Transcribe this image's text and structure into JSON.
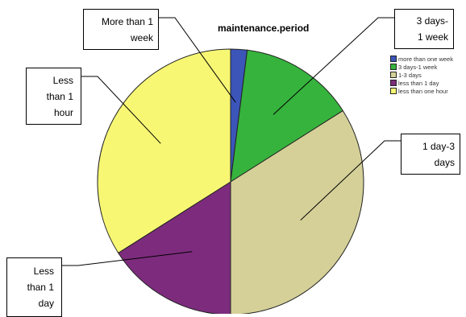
{
  "chart_data": {
    "type": "pie",
    "title": "maintenance.period",
    "legend_position": "top-right",
    "slices": [
      {
        "label": "more than one week",
        "callout": "More than 1\nweek",
        "value": 2,
        "color": "#3b55b8"
      },
      {
        "label": "3 days-1 week",
        "callout": "3 days-\n1 week",
        "value": 14,
        "color": "#36b33d"
      },
      {
        "label": "1-3 days",
        "callout": "1 day-3\ndays",
        "value": 34,
        "color": "#d5d098"
      },
      {
        "label": "less than 1 day",
        "callout": "Less\nthan 1\nday",
        "value": 16,
        "color": "#7d2c7d"
      },
      {
        "label": "less than one hour",
        "callout": "Less\nthan 1\nhour",
        "value": 34,
        "color": "#f7f774"
      }
    ]
  }
}
